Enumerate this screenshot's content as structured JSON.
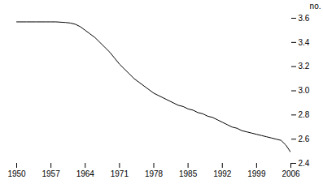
{
  "chart_data": {
    "type": "line",
    "ylabel": "no.",
    "color": "#000000",
    "xlim": [
      1950,
      2006
    ],
    "ylim": [
      2.4,
      3.6
    ],
    "xticks": [
      1950,
      1957,
      1964,
      1971,
      1978,
      1985,
      1992,
      1999,
      2006
    ],
    "yticks": [
      2.4,
      2.6,
      2.8,
      {
        "value": 3.0,
        "label": "3.0"
      },
      3.2,
      3.4,
      3.6
    ],
    "x": [
      1950,
      1952,
      1954,
      1956,
      1957,
      1958,
      1960,
      1961,
      1962,
      1963,
      1964,
      1965,
      1966,
      1967,
      1968,
      1969,
      1970,
      1971,
      1972,
      1973,
      1974,
      1975,
      1976,
      1977,
      1978,
      1979,
      1980,
      1981,
      1982,
      1983,
      1984,
      1985,
      1986,
      1987,
      1988,
      1989,
      1990,
      1991,
      1992,
      1993,
      1994,
      1995,
      1996,
      1997,
      1998,
      1999,
      2000,
      2001,
      2002,
      2003,
      2004,
      2005,
      2006
    ],
    "values": [
      3.57,
      3.57,
      3.57,
      3.57,
      3.57,
      3.57,
      3.565,
      3.56,
      3.55,
      3.53,
      3.5,
      3.47,
      3.44,
      3.4,
      3.36,
      3.32,
      3.27,
      3.22,
      3.18,
      3.14,
      3.1,
      3.07,
      3.04,
      3.01,
      2.98,
      2.96,
      2.94,
      2.92,
      2.9,
      2.88,
      2.87,
      2.85,
      2.84,
      2.82,
      2.81,
      2.79,
      2.78,
      2.76,
      2.74,
      2.72,
      2.7,
      2.69,
      2.67,
      2.66,
      2.65,
      2.64,
      2.63,
      2.62,
      2.61,
      2.6,
      2.59,
      2.55,
      2.49
    ]
  }
}
